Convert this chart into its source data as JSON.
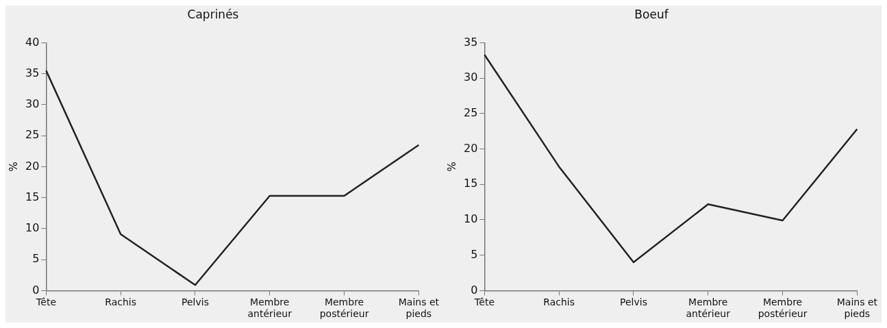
{
  "chart_data": [
    {
      "type": "line",
      "title": "Caprinés",
      "ylabel": "%",
      "categories": [
        "Tête",
        "Rachis",
        "Pelvis",
        "Membre antérieur",
        "Membre postérieur",
        "Mains et pieds"
      ],
      "values": [
        35.5,
        9.1,
        0.9,
        15.3,
        15.3,
        23.5
      ],
      "color": "#222222",
      "ylim": [
        0,
        40
      ],
      "yticks": [
        0,
        5,
        10,
        15,
        20,
        25,
        30,
        35,
        40
      ],
      "grid": false,
      "legend": false,
      "marker": "none",
      "line_style": "solid"
    },
    {
      "type": "line",
      "title": "Boeuf",
      "ylabel": "%",
      "categories": [
        "Tête",
        "Rachis",
        "Pelvis",
        "Membre antérieur",
        "Membre postérieur",
        "Mains et pieds"
      ],
      "values": [
        33.3,
        17.5,
        4.0,
        12.2,
        9.9,
        22.8
      ],
      "color": "#222222",
      "ylim": [
        0,
        35
      ],
      "yticks": [
        0,
        5,
        10,
        15,
        20,
        25,
        30,
        35
      ],
      "grid": false,
      "legend": false,
      "marker": "none",
      "line_style": "solid"
    }
  ]
}
